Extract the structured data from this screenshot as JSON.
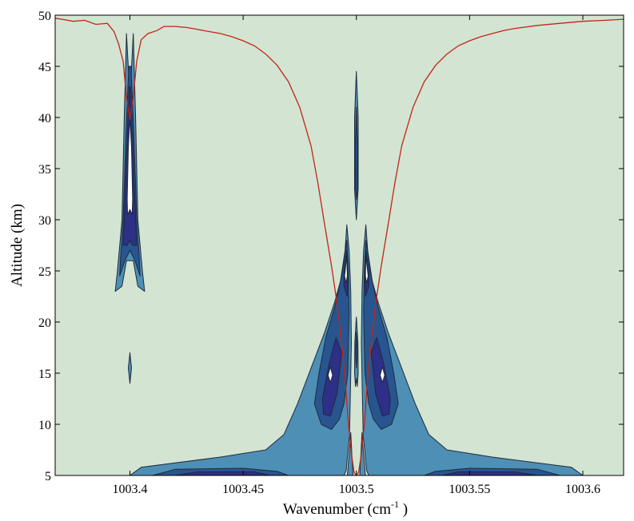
{
  "chart_data": {
    "type": "contour",
    "xlabel": "Wavenumber (cm",
    "xlabel_superscript": "-1",
    "xlabel_suffix": " )",
    "ylabel": "Altitude (km)",
    "xlim": [
      1003.367,
      1003.618
    ],
    "ylim": [
      5,
      50
    ],
    "x_ticks": [
      1003.4,
      1003.45,
      1003.5,
      1003.55,
      1003.6
    ],
    "x_tick_labels": [
      "1003.4",
      "1003.45",
      "1003.5",
      "1003.55",
      "1003.6"
    ],
    "y_ticks": [
      5,
      10,
      15,
      20,
      25,
      30,
      35,
      40,
      45,
      50
    ],
    "y_tick_labels": [
      "5",
      "10",
      "15",
      "20",
      "25",
      "30",
      "35",
      "40",
      "45",
      "50"
    ],
    "grid": false,
    "colors": {
      "background": "#d3e4d2",
      "level1": "#4e8fb5",
      "level2": "#28558f",
      "level3": "#2e2f86",
      "level4": "#ffffff",
      "outline": "#1f2a3a",
      "line": "#c22518"
    },
    "contour_levels": [
      "level1",
      "level2",
      "level3",
      "level4"
    ],
    "contour_regions": [
      {
        "level": "level1",
        "points": [
          [
            1003.3985,
            48.2
          ],
          [
            1003.3995,
            44
          ],
          [
            1003.4005,
            44
          ],
          [
            1003.4015,
            48.2
          ],
          [
            1003.4025,
            40
          ],
          [
            1003.4035,
            30
          ],
          [
            1003.4055,
            25
          ],
          [
            1003.4065,
            23
          ],
          [
            1003.4035,
            23.5
          ],
          [
            1003.4015,
            26
          ],
          [
            1003.3985,
            26
          ],
          [
            1003.3965,
            23.5
          ],
          [
            1003.3935,
            23
          ],
          [
            1003.3945,
            25
          ],
          [
            1003.3965,
            30
          ],
          [
            1003.3975,
            40
          ]
        ]
      },
      {
        "level": "level2",
        "points": [
          [
            1003.3995,
            45
          ],
          [
            1003.4005,
            45
          ],
          [
            1003.4018,
            38
          ],
          [
            1003.403,
            30
          ],
          [
            1003.4042,
            26
          ],
          [
            1003.4045,
            24.5
          ],
          [
            1003.4022,
            26
          ],
          [
            1003.4,
            27
          ],
          [
            1003.3978,
            26
          ],
          [
            1003.3955,
            24.5
          ],
          [
            1003.3958,
            26
          ],
          [
            1003.397,
            30
          ],
          [
            1003.3982,
            38
          ]
        ]
      },
      {
        "level": "level3",
        "points": [
          [
            1003.3997,
            43
          ],
          [
            1003.4003,
            43
          ],
          [
            1003.4013,
            37
          ],
          [
            1003.4025,
            30
          ],
          [
            1003.403,
            27.5
          ],
          [
            1003.4012,
            27.5
          ],
          [
            1003.4,
            28
          ],
          [
            1003.3988,
            27.5
          ],
          [
            1003.397,
            27.5
          ],
          [
            1003.3975,
            30
          ],
          [
            1003.3987,
            37
          ]
        ]
      },
      {
        "level": "level4",
        "points": [
          [
            1003.4,
            40
          ],
          [
            1003.4007,
            37
          ],
          [
            1003.4012,
            32
          ],
          [
            1003.401,
            30.5
          ],
          [
            1003.4,
            31
          ],
          [
            1003.399,
            30.5
          ],
          [
            1003.3988,
            32
          ],
          [
            1003.3993,
            37
          ]
        ]
      },
      {
        "level": "level1",
        "points": [
          [
            1003.4,
            17
          ],
          [
            1003.4007,
            15.5
          ],
          [
            1003.4,
            14
          ],
          [
            1003.3993,
            15.5
          ]
        ]
      },
      {
        "level": "level1",
        "points": [
          [
            1003.5,
            44.5
          ],
          [
            1003.5008,
            40
          ],
          [
            1003.5008,
            33
          ],
          [
            1003.5,
            30
          ],
          [
            1003.4992,
            33
          ],
          [
            1003.4992,
            40
          ]
        ]
      },
      {
        "level": "level2",
        "points": [
          [
            1003.5,
            41
          ],
          [
            1003.5005,
            37
          ],
          [
            1003.5004,
            33
          ],
          [
            1003.5,
            32
          ],
          [
            1003.4996,
            33
          ],
          [
            1003.4995,
            37
          ]
        ]
      },
      {
        "level": "level1",
        "points": [
          [
            1003.5,
            20.5
          ],
          [
            1003.5007,
            18
          ],
          [
            1003.5008,
            15
          ],
          [
            1003.5004,
            13.7
          ],
          [
            1003.5,
            14.5
          ],
          [
            1003.4996,
            13.7
          ],
          [
            1003.4992,
            15
          ],
          [
            1003.4993,
            18
          ]
        ]
      },
      {
        "level": "level2",
        "points": [
          [
            1003.5,
            19
          ],
          [
            1003.5004,
            17
          ],
          [
            1003.5,
            15.5
          ],
          [
            1003.4996,
            17
          ]
        ]
      },
      {
        "level": "level1",
        "points": [
          [
            1003.4958,
            29.5
          ],
          [
            1003.4968,
            27
          ],
          [
            1003.4975,
            23
          ],
          [
            1003.4978,
            18
          ],
          [
            1003.497,
            9
          ],
          [
            1003.4955,
            5.5
          ],
          [
            1003.4945,
            5
          ],
          [
            1003.4,
            5
          ],
          [
            1003.405,
            5.8
          ],
          [
            1003.44,
            6.8
          ],
          [
            1003.46,
            7.5
          ],
          [
            1003.468,
            9
          ],
          [
            1003.474,
            12
          ],
          [
            1003.48,
            15.5
          ],
          [
            1003.486,
            19
          ],
          [
            1003.4905,
            22
          ],
          [
            1003.493,
            24
          ],
          [
            1003.495,
            27
          ]
        ]
      },
      {
        "level": "level2",
        "points": [
          [
            1003.4958,
            28
          ],
          [
            1003.4965,
            25
          ],
          [
            1003.4968,
            21
          ],
          [
            1003.4962,
            15
          ],
          [
            1003.4945,
            12
          ],
          [
            1003.4925,
            10.5
          ],
          [
            1003.489,
            9.5
          ],
          [
            1003.4845,
            10
          ],
          [
            1003.4815,
            12
          ],
          [
            1003.4835,
            15
          ],
          [
            1003.4865,
            18.5
          ],
          [
            1003.4905,
            21.5
          ],
          [
            1003.4935,
            24.5
          ]
        ]
      },
      {
        "level": "level3",
        "points": [
          [
            1003.4958,
            27
          ],
          [
            1003.4962,
            24
          ],
          [
            1003.496,
            22.5
          ],
          [
            1003.4945,
            23.5
          ],
          [
            1003.4945,
            25
          ]
        ]
      },
      {
        "level": "level3",
        "points": [
          [
            1003.4935,
            17
          ],
          [
            1003.4915,
            13
          ],
          [
            1003.4885,
            10.8
          ],
          [
            1003.4855,
            11
          ],
          [
            1003.485,
            12.5
          ],
          [
            1003.488,
            16
          ],
          [
            1003.491,
            18.5
          ]
        ]
      },
      {
        "level": "level4",
        "points": [
          [
            1003.4958,
            26.5
          ],
          [
            1003.496,
            24.5
          ],
          [
            1003.4955,
            23.8
          ],
          [
            1003.4948,
            24.5
          ]
        ]
      },
      {
        "level": "level4",
        "points": [
          [
            1003.4885,
            15.6
          ],
          [
            1003.4895,
            14.8
          ],
          [
            1003.4885,
            14.1
          ],
          [
            1003.4875,
            14.8
          ]
        ]
      },
      {
        "level": "level2",
        "points": [
          [
            1003.41,
            5
          ],
          [
            1003.42,
            5.6
          ],
          [
            1003.45,
            5.7
          ],
          [
            1003.465,
            5.4
          ],
          [
            1003.47,
            5
          ]
        ]
      },
      {
        "level": "level3",
        "points": [
          [
            1003.42,
            5
          ],
          [
            1003.43,
            5.35
          ],
          [
            1003.455,
            5.35
          ],
          [
            1003.462,
            5
          ]
        ]
      },
      {
        "level": "level1",
        "points": [
          [
            1003.4975,
            9.2
          ],
          [
            1003.4985,
            5
          ],
          [
            1003.496,
            5
          ],
          [
            1003.497,
            7.5
          ]
        ]
      },
      {
        "level": "level1",
        "points": [
          [
            1003.5042,
            29.5
          ],
          [
            1003.5032,
            27
          ],
          [
            1003.5025,
            23
          ],
          [
            1003.5022,
            18
          ],
          [
            1003.503,
            9
          ],
          [
            1003.5045,
            5.5
          ],
          [
            1003.5055,
            5
          ],
          [
            1003.6,
            5
          ],
          [
            1003.595,
            5.8
          ],
          [
            1003.56,
            6.8
          ],
          [
            1003.54,
            7.5
          ],
          [
            1003.532,
            9
          ],
          [
            1003.526,
            12
          ],
          [
            1003.52,
            15.5
          ],
          [
            1003.514,
            19
          ],
          [
            1003.5095,
            22
          ],
          [
            1003.507,
            24
          ],
          [
            1003.505,
            27
          ]
        ]
      },
      {
        "level": "level2",
        "points": [
          [
            1003.5042,
            28
          ],
          [
            1003.5035,
            25
          ],
          [
            1003.5032,
            21
          ],
          [
            1003.5038,
            15
          ],
          [
            1003.5055,
            12
          ],
          [
            1003.5075,
            10.5
          ],
          [
            1003.511,
            9.5
          ],
          [
            1003.5155,
            10
          ],
          [
            1003.5185,
            12
          ],
          [
            1003.5165,
            15
          ],
          [
            1003.5135,
            18.5
          ],
          [
            1003.5095,
            21.5
          ],
          [
            1003.5065,
            24.5
          ]
        ]
      },
      {
        "level": "level3",
        "points": [
          [
            1003.5042,
            27
          ],
          [
            1003.5038,
            24
          ],
          [
            1003.504,
            22.5
          ],
          [
            1003.5055,
            23.5
          ],
          [
            1003.5055,
            25
          ]
        ]
      },
      {
        "level": "level3",
        "points": [
          [
            1003.5065,
            17
          ],
          [
            1003.5085,
            13
          ],
          [
            1003.5115,
            10.8
          ],
          [
            1003.5145,
            11
          ],
          [
            1003.515,
            12.5
          ],
          [
            1003.512,
            16
          ],
          [
            1003.509,
            18.5
          ]
        ]
      },
      {
        "level": "level4",
        "points": [
          [
            1003.5042,
            26.5
          ],
          [
            1003.504,
            24.5
          ],
          [
            1003.5045,
            23.8
          ],
          [
            1003.5052,
            24.5
          ]
        ]
      },
      {
        "level": "level4",
        "points": [
          [
            1003.5115,
            15.6
          ],
          [
            1003.5125,
            14.8
          ],
          [
            1003.5115,
            14.1
          ],
          [
            1003.5105,
            14.8
          ]
        ]
      },
      {
        "level": "level2",
        "points": [
          [
            1003.59,
            5
          ],
          [
            1003.58,
            5.6
          ],
          [
            1003.55,
            5.7
          ],
          [
            1003.535,
            5.4
          ],
          [
            1003.53,
            5
          ]
        ]
      },
      {
        "level": "level3",
        "points": [
          [
            1003.58,
            5
          ],
          [
            1003.57,
            5.35
          ],
          [
            1003.545,
            5.35
          ],
          [
            1003.538,
            5
          ]
        ]
      },
      {
        "level": "level1",
        "points": [
          [
            1003.5025,
            9.2
          ],
          [
            1003.5015,
            5
          ],
          [
            1003.504,
            5
          ],
          [
            1003.503,
            7.5
          ]
        ]
      }
    ],
    "red_line": {
      "color": "#c22518",
      "points": [
        [
          1003.367,
          49.7
        ],
        [
          1003.37,
          49.6
        ],
        [
          1003.375,
          49.4
        ],
        [
          1003.38,
          49.5
        ],
        [
          1003.385,
          49.1
        ],
        [
          1003.39,
          49.2
        ],
        [
          1003.393,
          48.4
        ],
        [
          1003.395,
          47.2
        ],
        [
          1003.397,
          45.5
        ],
        [
          1003.3985,
          42
        ],
        [
          1003.4,
          39.8
        ],
        [
          1003.4015,
          42
        ],
        [
          1003.403,
          45.5
        ],
        [
          1003.405,
          47.6
        ],
        [
          1003.408,
          48.2
        ],
        [
          1003.412,
          48.5
        ],
        [
          1003.415,
          48.9
        ],
        [
          1003.42,
          48.9
        ],
        [
          1003.425,
          48.8
        ],
        [
          1003.43,
          48.6
        ],
        [
          1003.435,
          48.4
        ],
        [
          1003.44,
          48.2
        ],
        [
          1003.445,
          47.9
        ],
        [
          1003.45,
          47.5
        ],
        [
          1003.455,
          47
        ],
        [
          1003.46,
          46.2
        ],
        [
          1003.465,
          45.1
        ],
        [
          1003.47,
          43.5
        ],
        [
          1003.475,
          41
        ],
        [
          1003.48,
          37.2
        ],
        [
          1003.483,
          33.6
        ],
        [
          1003.486,
          29.5
        ],
        [
          1003.489,
          25.5
        ],
        [
          1003.491,
          22.5
        ],
        [
          1003.493,
          19
        ],
        [
          1003.495,
          14.5
        ],
        [
          1003.4965,
          10
        ],
        [
          1003.498,
          6.8
        ],
        [
          1003.499,
          5.3
        ],
        [
          1003.5,
          5
        ],
        [
          1003.501,
          5.3
        ],
        [
          1003.502,
          6.8
        ],
        [
          1003.5035,
          10
        ],
        [
          1003.505,
          14.5
        ],
        [
          1003.507,
          19
        ],
        [
          1003.509,
          22.5
        ],
        [
          1003.511,
          25.5
        ],
        [
          1003.514,
          29.5
        ],
        [
          1003.517,
          33.6
        ],
        [
          1003.52,
          37.2
        ],
        [
          1003.525,
          41
        ],
        [
          1003.53,
          43.5
        ],
        [
          1003.535,
          45.1
        ],
        [
          1003.54,
          46.2
        ],
        [
          1003.545,
          47
        ],
        [
          1003.55,
          47.5
        ],
        [
          1003.555,
          47.9
        ],
        [
          1003.56,
          48.2
        ],
        [
          1003.565,
          48.5
        ],
        [
          1003.57,
          48.7
        ],
        [
          1003.58,
          49
        ],
        [
          1003.59,
          49.2
        ],
        [
          1003.6,
          49.4
        ],
        [
          1003.61,
          49.5
        ],
        [
          1003.618,
          49.6
        ]
      ]
    }
  }
}
